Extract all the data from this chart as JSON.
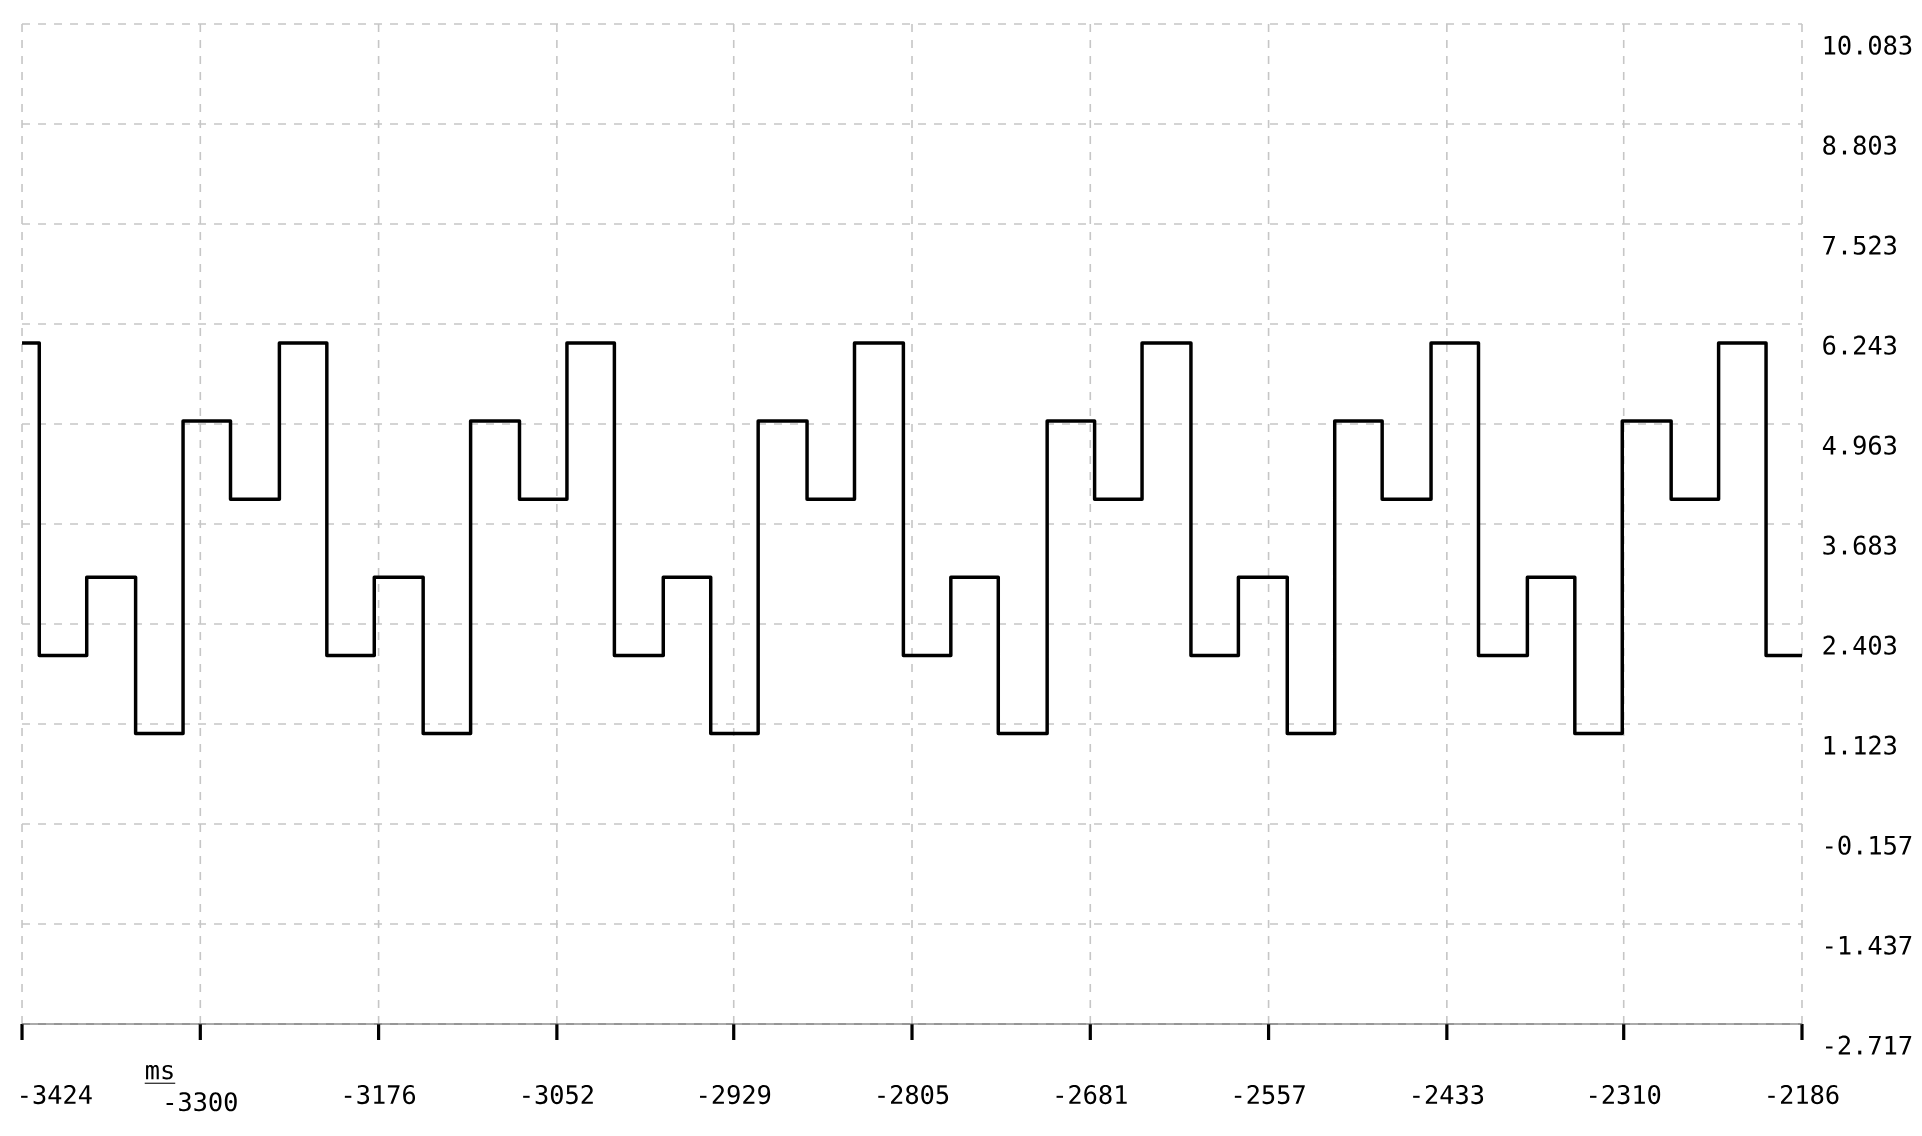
{
  "chart_data": {
    "type": "step",
    "xlabel": "ms",
    "x": [
      -3424,
      -3412,
      -3379,
      -3345,
      -3312,
      -3279,
      -3245,
      -3212,
      -3179,
      -3145,
      -3112,
      -3078,
      -3045,
      -3012,
      -2978,
      -2945,
      -2912,
      -2878,
      -2845,
      -2811,
      -2778,
      -2745,
      -2711,
      -2678,
      -2645,
      -2611,
      -2578,
      -2544,
      -2511,
      -2478,
      -2444,
      -2411,
      -2377,
      -2344,
      -2311,
      -2277,
      -2244,
      -2211,
      -2186
    ],
    "values": [
      6,
      2,
      3,
      1,
      5,
      4,
      6,
      2,
      3,
      1,
      5,
      4,
      6,
      2,
      3,
      1,
      5,
      4,
      6,
      2,
      3,
      1,
      5,
      4,
      6,
      2,
      3,
      1,
      5,
      4,
      6,
      2,
      3,
      1,
      5,
      4,
      6,
      2,
      2
    ],
    "color": "#000000",
    "xlim": [
      -3424,
      -2186
    ],
    "xticks": [
      -3424,
      -3300,
      -3176,
      -3052,
      -2929,
      -2805,
      -2681,
      -2557,
      -2433,
      -2310,
      -2186
    ],
    "ylim": [
      -2.717,
      10.083
    ],
    "yticks": [
      -2.717,
      -1.437,
      -0.157,
      1.123,
      2.403,
      3.683,
      4.963,
      6.243,
      7.523,
      8.803,
      10.083
    ],
    "grid": true
  }
}
